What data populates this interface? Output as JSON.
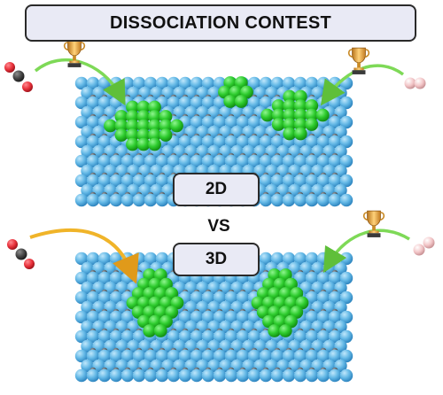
{
  "title": "DISSOCIATION CONTEST",
  "label_2d": "2D",
  "label_vs": "VS",
  "label_3d": "3D",
  "colors": {
    "support_atom": "#63b8e6",
    "support_dark_atom": "#5d6166",
    "cluster_atom": "#2ecc2e",
    "co_carbon": "#444444",
    "co_oxygen": "#e8303a",
    "h2_atom": "#f3c6c8",
    "arrow_yellow": "#f0b429",
    "arrow_green": "#7ed957",
    "trophy": "#e8a33d"
  },
  "icons": [
    "co-molecule-icon",
    "h2-molecule-icon",
    "trophy-icon"
  ]
}
